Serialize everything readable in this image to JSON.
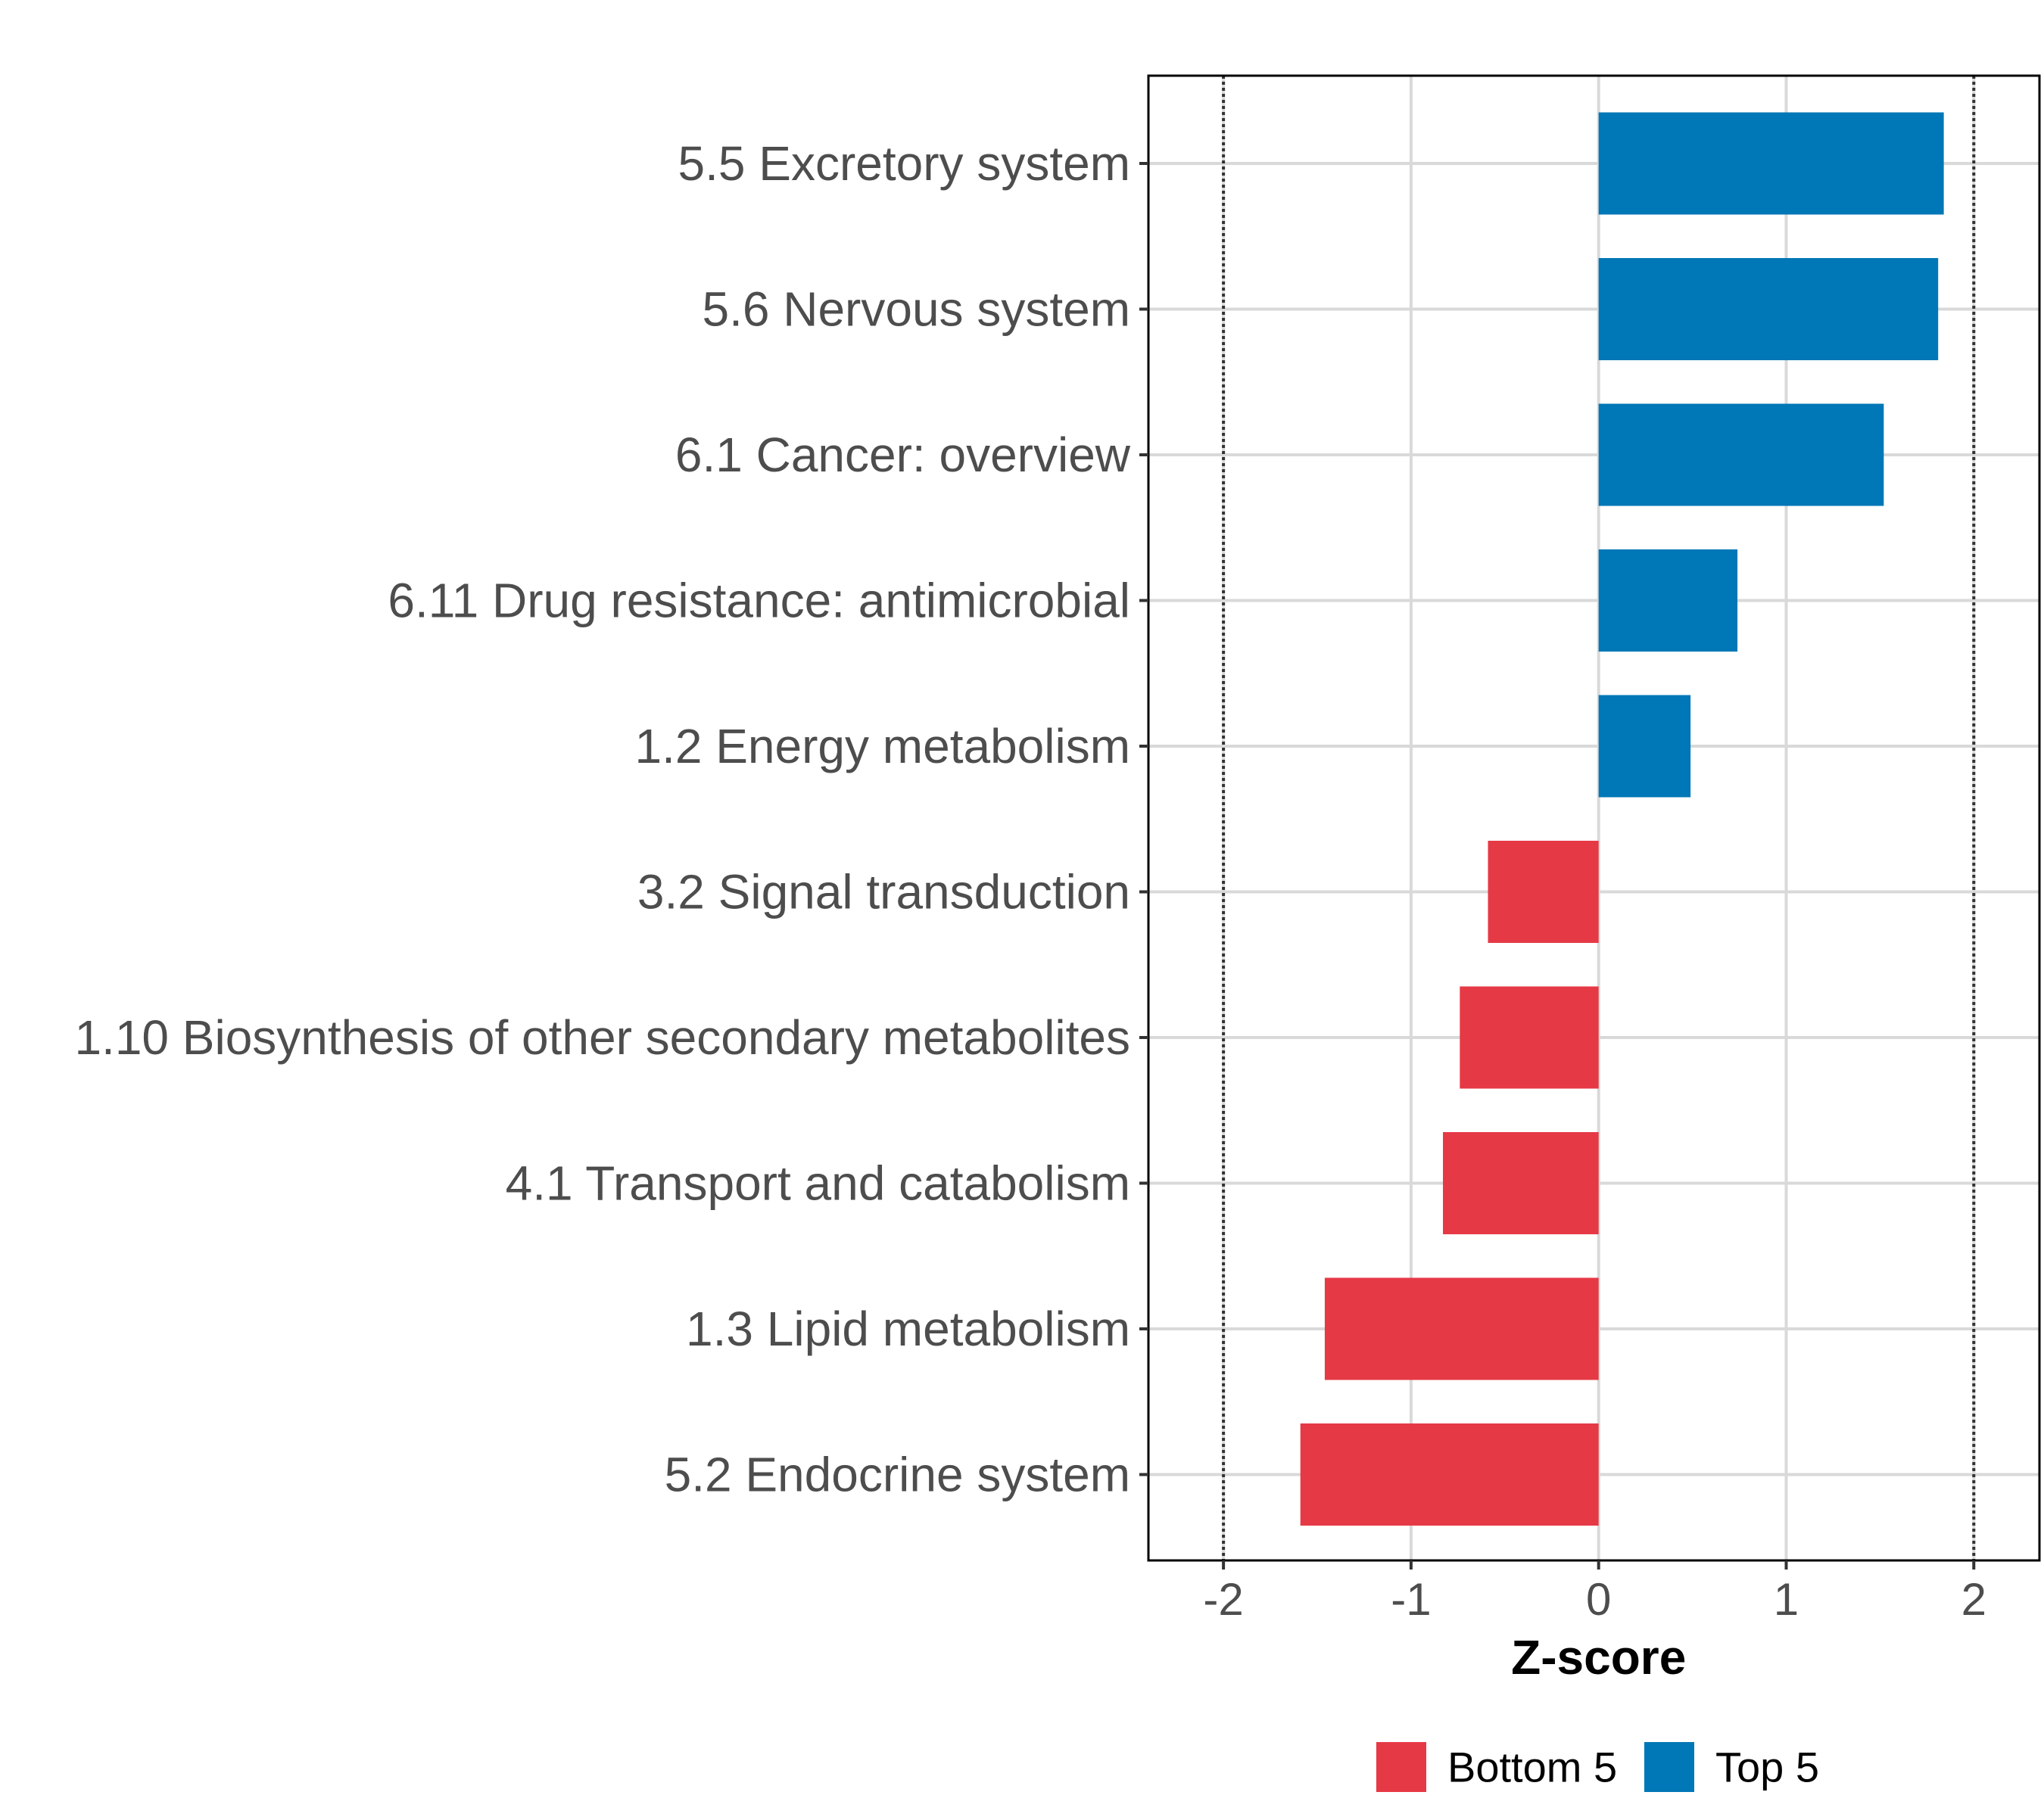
{
  "chart_data": {
    "type": "bar",
    "orientation": "horizontal",
    "categories": [
      "5.5 Excretory system",
      "5.6 Nervous system",
      "6.1 Cancer: overview",
      "6.11 Drug resistance: antimicrobial",
      "1.2 Energy metabolism",
      "3.2 Signal transduction",
      "1.10 Biosynthesis of other secondary metabolites",
      "4.1 Transport and catabolism",
      "1.3 Lipid metabolism",
      "5.2 Endocrine system"
    ],
    "values": [
      1.84,
      1.81,
      1.52,
      0.74,
      0.49,
      -0.59,
      -0.74,
      -0.83,
      -1.46,
      -1.59
    ],
    "groups": [
      "Top 5",
      "Top 5",
      "Top 5",
      "Top 5",
      "Top 5",
      "Bottom 5",
      "Bottom 5",
      "Bottom 5",
      "Bottom 5",
      "Bottom 5"
    ],
    "xlabel": "Z-score",
    "ylabel": "",
    "xlim": [
      -2.4,
      2.35
    ],
    "xticks": [
      "-2",
      "-1",
      "0",
      "1",
      "2"
    ],
    "xtick_values": [
      -2,
      -1,
      0,
      1,
      2
    ],
    "reference_lines": [
      -2,
      2
    ],
    "grid": true,
    "legend": {
      "position": "bottom",
      "items": [
        {
          "label": "Bottom 5",
          "color": "#E63946"
        },
        {
          "label": "Top 5",
          "color": "#0077B6"
        }
      ]
    }
  }
}
